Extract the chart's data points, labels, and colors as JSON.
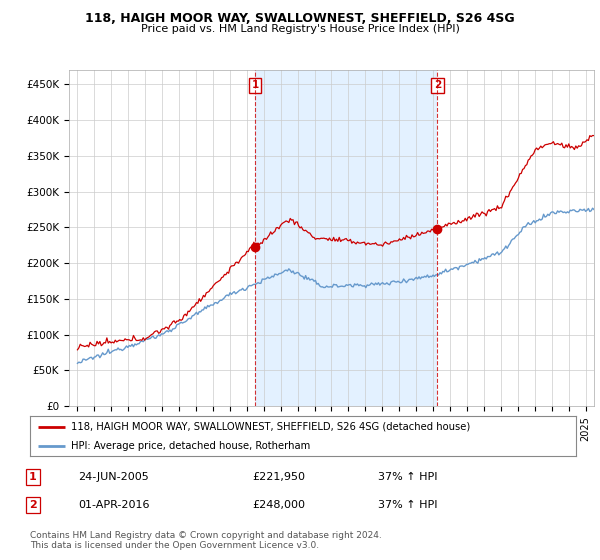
{
  "title": "118, HAIGH MOOR WAY, SWALLOWNEST, SHEFFIELD, S26 4SG",
  "subtitle": "Price paid vs. HM Land Registry's House Price Index (HPI)",
  "ylabel_ticks": [
    "£0",
    "£50K",
    "£100K",
    "£150K",
    "£200K",
    "£250K",
    "£300K",
    "£350K",
    "£400K",
    "£450K"
  ],
  "ytick_vals": [
    0,
    50000,
    100000,
    150000,
    200000,
    250000,
    300000,
    350000,
    400000,
    450000
  ],
  "ylim": [
    0,
    470000
  ],
  "xlim_start": 1994.5,
  "xlim_end": 2025.5,
  "xtick_years": [
    1995,
    1996,
    1997,
    1998,
    1999,
    2000,
    2001,
    2002,
    2003,
    2004,
    2005,
    2006,
    2007,
    2008,
    2009,
    2010,
    2011,
    2012,
    2013,
    2014,
    2015,
    2016,
    2017,
    2018,
    2019,
    2020,
    2021,
    2022,
    2023,
    2024,
    2025
  ],
  "red_color": "#cc0000",
  "blue_color": "#6699cc",
  "shade_color": "#ddeeff",
  "marker1_year": 2005.48,
  "marker1_val": 221950,
  "marker2_year": 2016.25,
  "marker2_val": 248000,
  "legend_label_red": "118, HAIGH MOOR WAY, SWALLOWNEST, SHEFFIELD, S26 4SG (detached house)",
  "legend_label_blue": "HPI: Average price, detached house, Rotherham",
  "table_rows": [
    {
      "num": "1",
      "date": "24-JUN-2005",
      "price": "£221,950",
      "change": "37% ↑ HPI"
    },
    {
      "num": "2",
      "date": "01-APR-2016",
      "price": "£248,000",
      "change": "37% ↑ HPI"
    }
  ],
  "footnote": "Contains HM Land Registry data © Crown copyright and database right 2024.\nThis data is licensed under the Open Government Licence v3.0.",
  "bg_color": "#ffffff",
  "plot_bg_color": "#ffffff",
  "grid_color": "#cccccc"
}
